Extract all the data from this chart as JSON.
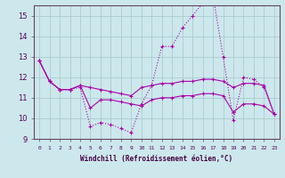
{
  "xlabel": "Windchill (Refroidissement éolien,°C)",
  "background_color": "#cce8ec",
  "grid_color": "#aacccc",
  "line_color": "#aa00aa",
  "x_values": [
    0,
    1,
    2,
    3,
    4,
    5,
    6,
    7,
    8,
    9,
    10,
    11,
    12,
    13,
    14,
    15,
    16,
    17,
    18,
    19,
    20,
    21,
    22,
    23
  ],
  "series": [
    [
      12.8,
      11.8,
      11.4,
      11.4,
      11.5,
      9.6,
      9.8,
      9.7,
      9.5,
      9.3,
      10.7,
      11.6,
      13.5,
      13.5,
      14.4,
      15.0,
      15.6,
      16.0,
      13.0,
      9.9,
      12.0,
      11.9,
      11.5,
      10.2
    ],
    [
      12.8,
      11.8,
      11.4,
      11.4,
      11.6,
      11.5,
      11.4,
      11.3,
      11.2,
      11.1,
      11.5,
      11.6,
      11.7,
      11.7,
      11.8,
      11.8,
      11.9,
      11.9,
      11.8,
      11.5,
      11.7,
      11.7,
      11.6,
      10.2
    ],
    [
      12.8,
      11.8,
      11.4,
      11.4,
      11.6,
      10.5,
      10.9,
      10.9,
      10.8,
      10.7,
      10.6,
      10.9,
      11.0,
      11.0,
      11.1,
      11.1,
      11.2,
      11.2,
      11.1,
      10.3,
      10.7,
      10.7,
      10.6,
      10.2
    ]
  ],
  "ylim": [
    9.0,
    15.5
  ],
  "xlim": [
    -0.5,
    23.5
  ],
  "yticks": [
    9,
    10,
    11,
    12,
    13,
    14,
    15
  ],
  "xtick_labels": [
    "0",
    "1",
    "2",
    "3",
    "4",
    "5",
    "6",
    "7",
    "8",
    "9",
    "10",
    "11",
    "12",
    "13",
    "14",
    "15",
    "16",
    "17",
    "18",
    "19",
    "20",
    "21",
    "22",
    "23"
  ]
}
